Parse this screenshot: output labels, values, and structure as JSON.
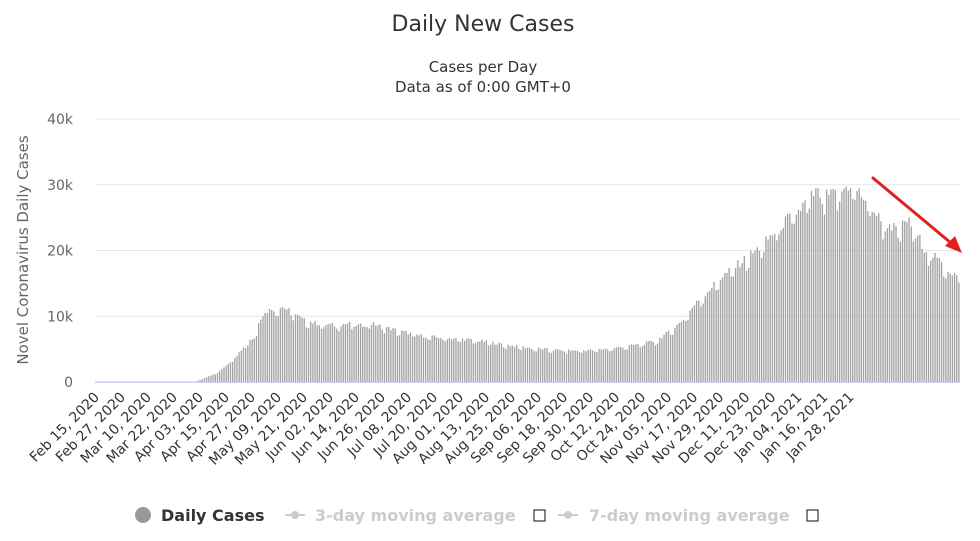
{
  "chart_data": {
    "type": "bar",
    "title": "Daily New Cases",
    "subtitle_lines": [
      "Cases per Day",
      "Data as of 0:00 GMT+0"
    ],
    "xlabel": "",
    "ylabel": "Novel Coronavirus Daily Cases",
    "ylim": [
      0,
      40000
    ],
    "y_ticks": [
      0,
      10000,
      20000,
      30000,
      40000
    ],
    "y_tick_labels": [
      "0",
      "10k",
      "20k",
      "30k",
      "40k"
    ],
    "grid": true,
    "bar_color": "#a3a3a3",
    "start_date": "2020-02-15",
    "x_tick_labels": [
      "Feb 15, 2020",
      "Feb 27, 2020",
      "Mar 10, 2020",
      "Mar 22, 2020",
      "Apr 03, 2020",
      "Apr 15, 2020",
      "Apr 27, 2020",
      "May 09, 2020",
      "May 21, 2020",
      "Jun 02, 2020",
      "Jun 14, 2020",
      "Jun 26, 2020",
      "Jul 08, 2020",
      "Jul 20, 2020",
      "Aug 01, 2020",
      "Aug 13, 2020",
      "Aug 25, 2020",
      "Sep 06, 2020",
      "Sep 18, 2020",
      "Sep 30, 2020",
      "Oct 12, 2020",
      "Oct 24, 2020",
      "Nov 05, 2020",
      "Nov 17, 2020",
      "Nov 29, 2020",
      "Dec 11, 2020",
      "Dec 23, 2020",
      "Jan 04, 2021",
      "Jan 16, 2021",
      "Jan 28, 2021"
    ],
    "keypoints": [
      [
        0,
        0
      ],
      [
        20,
        5
      ],
      [
        40,
        10
      ],
      [
        46,
        60
      ],
      [
        50,
        600
      ],
      [
        55,
        1200
      ],
      [
        60,
        2500
      ],
      [
        65,
        4000
      ],
      [
        70,
        6000
      ],
      [
        74,
        7000
      ],
      [
        76,
        10400
      ],
      [
        80,
        10700
      ],
      [
        86,
        11200
      ],
      [
        90,
        10500
      ],
      [
        96,
        9200
      ],
      [
        104,
        8600
      ],
      [
        110,
        8500
      ],
      [
        116,
        8700
      ],
      [
        122,
        8400
      ],
      [
        126,
        8800
      ],
      [
        132,
        8300
      ],
      [
        140,
        7600
      ],
      [
        150,
        6900
      ],
      [
        160,
        6600
      ],
      [
        170,
        6400
      ],
      [
        180,
        6000
      ],
      [
        190,
        5500
      ],
      [
        200,
        5100
      ],
      [
        210,
        4800
      ],
      [
        220,
        4700
      ],
      [
        230,
        4800
      ],
      [
        240,
        5100
      ],
      [
        250,
        5600
      ],
      [
        258,
        6100
      ],
      [
        264,
        7400
      ],
      [
        270,
        9000
      ],
      [
        276,
        11500
      ],
      [
        282,
        13500
      ],
      [
        288,
        15500
      ],
      [
        294,
        17000
      ],
      [
        300,
        18500
      ],
      [
        306,
        20000
      ],
      [
        312,
        22000
      ],
      [
        318,
        24000
      ],
      [
        324,
        25500
      ],
      [
        328,
        27000
      ],
      [
        332,
        28300
      ],
      [
        336,
        27500
      ],
      [
        340,
        28000
      ],
      [
        344,
        28500
      ],
      [
        348,
        29500
      ],
      [
        350,
        29000
      ],
      [
        354,
        27500
      ],
      [
        358,
        26000
      ],
      [
        362,
        24000
      ],
      [
        366,
        23500
      ],
      [
        370,
        22500
      ],
      [
        374,
        24200
      ],
      [
        378,
        22500
      ],
      [
        382,
        20000
      ],
      [
        386,
        18800
      ],
      [
        390,
        17800
      ],
      [
        394,
        16500
      ],
      [
        398,
        15700
      ]
    ],
    "bar_count": 399,
    "legend": [
      {
        "label": "Daily Cases",
        "color": "#333333",
        "marker": "#999999",
        "active": true
      },
      {
        "label": "3-day moving average",
        "color": "#cccccc",
        "marker": "#cccccc",
        "active": false
      },
      {
        "label": "7-day moving average",
        "color": "#cccccc",
        "marker": "#cccccc",
        "active": false
      }
    ],
    "legend_placement": "bottom",
    "annotation_color": "#e02020"
  }
}
